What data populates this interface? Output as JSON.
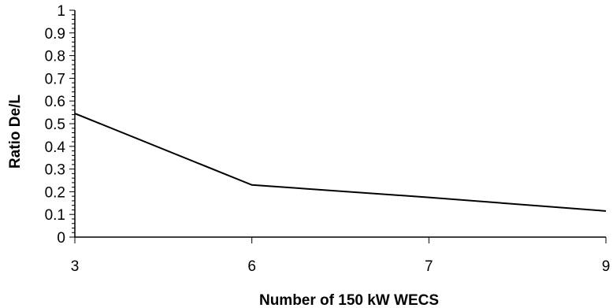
{
  "chart_data": {
    "type": "line",
    "title": "",
    "xlabel": "Number of  150 kW WECS",
    "ylabel": "Ratio  De/L",
    "categories": [
      "3",
      "6",
      "7",
      "9"
    ],
    "series": [
      {
        "values": [
          0.545,
          0.23,
          0.175,
          0.115
        ]
      }
    ],
    "ylim": [
      0,
      1
    ],
    "yticks": [
      "0",
      "0.1",
      "0.2",
      "0.3",
      "0.4",
      "0.5",
      "0.6",
      "0.7",
      "0.8",
      "0.9",
      "1"
    ],
    "grid": false,
    "legend": "none",
    "line_color": "#000000"
  }
}
